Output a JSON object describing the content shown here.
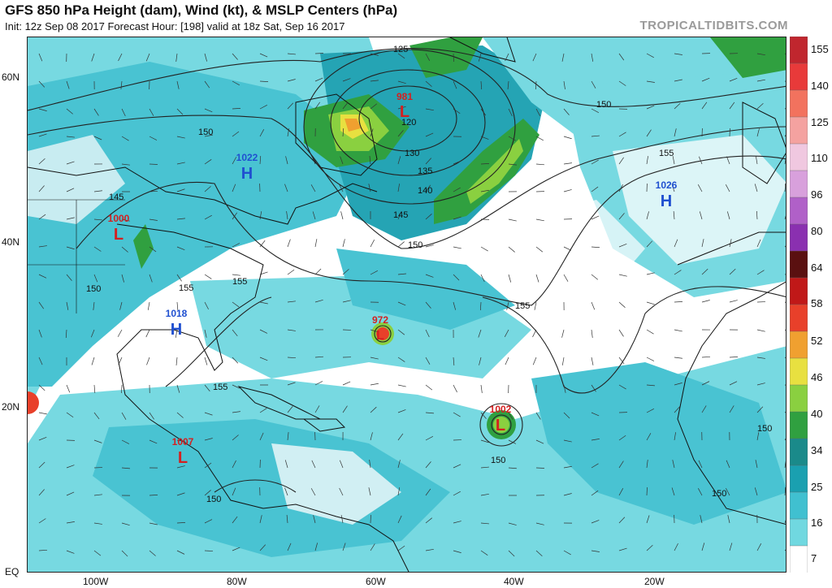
{
  "header": {
    "title": "GFS 850 hPa Height (dam), Wind (kt), & MSLP Centers (hPa)",
    "subtitle": "Init: 12z Sep 08 2017   Forecast Hour: [198]   valid at 18z Sat, Sep 16 2017",
    "watermark": "TROPICALTIDBITS.COM"
  },
  "axes": {
    "lat_ticks": [
      "60N",
      "40N",
      "20N",
      "EQ"
    ],
    "lon_ticks": [
      "100W",
      "80W",
      "60W",
      "40W",
      "20W"
    ]
  },
  "colorbar": {
    "labels": [
      "155",
      "140",
      "125",
      "110",
      "96",
      "80",
      "64",
      "58",
      "52",
      "46",
      "40",
      "34",
      "25",
      "16",
      "7"
    ],
    "colors": [
      "#c0262e",
      "#e83a3a",
      "#f2725e",
      "#f4a2a0",
      "#f0c8e0",
      "#d8a0dc",
      "#b060c8",
      "#8a30b0",
      "#5a1010",
      "#c01818",
      "#e8402a",
      "#f0a030",
      "#e8e040",
      "#8ad040",
      "#30a040",
      "#1a8a8a",
      "#1aa0b0",
      "#40c0d0",
      "#70d8e0",
      "#ffffff"
    ]
  },
  "pressure_centers": [
    {
      "type": "L",
      "value": "981",
      "color": "#d42020"
    },
    {
      "type": "H",
      "value": "1022",
      "color": "#2050d0"
    },
    {
      "type": "H",
      "value": "1026",
      "color": "#2050d0"
    },
    {
      "type": "L",
      "value": "1000",
      "color": "#d42020"
    },
    {
      "type": "H",
      "value": "1018",
      "color": "#2050d0"
    },
    {
      "type": "L",
      "value": "972",
      "color": "#d42020"
    },
    {
      "type": "L",
      "value": "1002",
      "color": "#d42020"
    },
    {
      "type": "L",
      "value": "1007",
      "color": "#d42020"
    }
  ],
  "contour_labels": [
    "125",
    "120",
    "130",
    "135",
    "140",
    "145",
    "150",
    "150",
    "150",
    "155",
    "155",
    "155",
    "155",
    "145",
    "150",
    "150",
    "155",
    "150",
    "150",
    "150"
  ]
}
